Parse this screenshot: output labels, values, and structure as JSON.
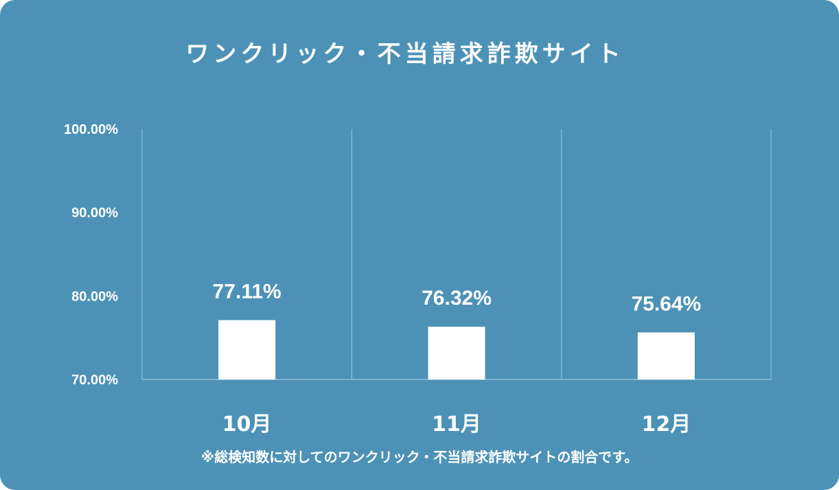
{
  "chart_data": {
    "type": "bar",
    "title": "ワンクリック・不当請求詐欺サイト",
    "categories": [
      "10月",
      "11月",
      "12月"
    ],
    "values": [
      77.11,
      76.32,
      75.64
    ],
    "value_labels": [
      "77.11%",
      "76.32%",
      "75.64%"
    ],
    "y_ticks": [
      {
        "value": 70,
        "label": "70.00%"
      },
      {
        "value": 80,
        "label": "80.00%"
      },
      {
        "value": 90,
        "label": "90.00%"
      },
      {
        "value": 100,
        "label": "100.00%"
      }
    ],
    "ylim": [
      70,
      100
    ],
    "grid": "vertical-separators",
    "legend": "none"
  },
  "footnote": "※総検知数に対してのワンクリック・不当請求詐欺サイトの割合です。",
  "colors": {
    "background": "#4d92b6",
    "bar": "#ffffff",
    "text": "#ffffff",
    "gridline": "#8fbdd6"
  }
}
